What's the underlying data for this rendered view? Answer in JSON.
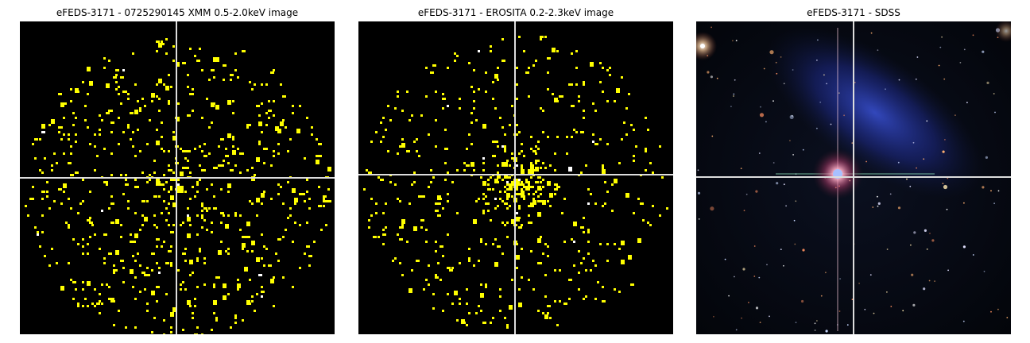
{
  "panels": [
    {
      "title": "eFEDS-3171 - 0725290145 XMM 0.5-2.0keV image",
      "image_type": "xray-counts",
      "count_color": "#ffff00"
    },
    {
      "title": "eFEDS-3171 -  EROSITA 0.2-2.3keV image",
      "image_type": "xray-counts",
      "count_color": "#ffff00"
    },
    {
      "title": "eFEDS-3171 - SDSS",
      "image_type": "optical-color"
    }
  ],
  "crosshair_color": "#dddddd",
  "background_color": "#000000"
}
